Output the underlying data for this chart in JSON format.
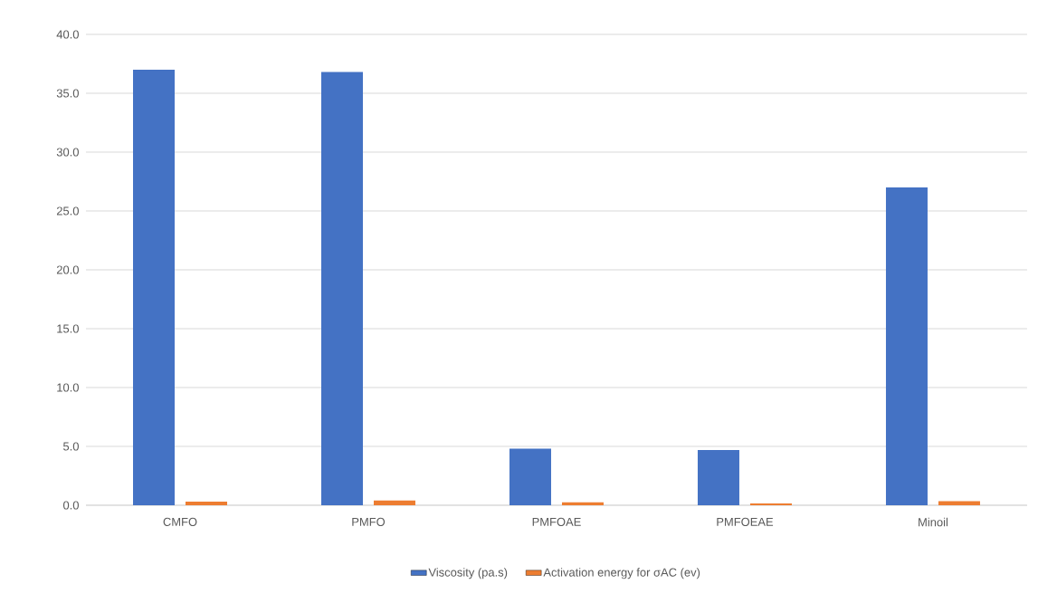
{
  "chart_data": {
    "type": "bar",
    "categories": [
      "CMFO",
      "PMFO",
      "PMFOAE",
      "PMFOEAE",
      "Minoil"
    ],
    "series": [
      {
        "name": "Viscosity (pa.s)",
        "color": "#4472c4",
        "values": [
          37.0,
          36.8,
          4.8,
          4.7,
          27.0
        ]
      },
      {
        "name": "Activation energy for  σAC (ev)",
        "color": "#ed7d31",
        "values": [
          0.3,
          0.4,
          0.25,
          0.15,
          0.35
        ]
      }
    ],
    "ylim": [
      0,
      40
    ],
    "yticks": [
      {
        "value": 0,
        "label": "0.0"
      },
      {
        "value": 5,
        "label": "5.0"
      },
      {
        "value": 10,
        "label": "10.0"
      },
      {
        "value": 15,
        "label": "15.0"
      },
      {
        "value": 20,
        "label": "20.0"
      },
      {
        "value": 25,
        "label": "25.0"
      },
      {
        "value": 30,
        "label": "30.0"
      },
      {
        "value": 35,
        "label": "35.0"
      },
      {
        "value": 40,
        "label": "40.0"
      }
    ],
    "grid": "y",
    "legend": "bottom"
  }
}
